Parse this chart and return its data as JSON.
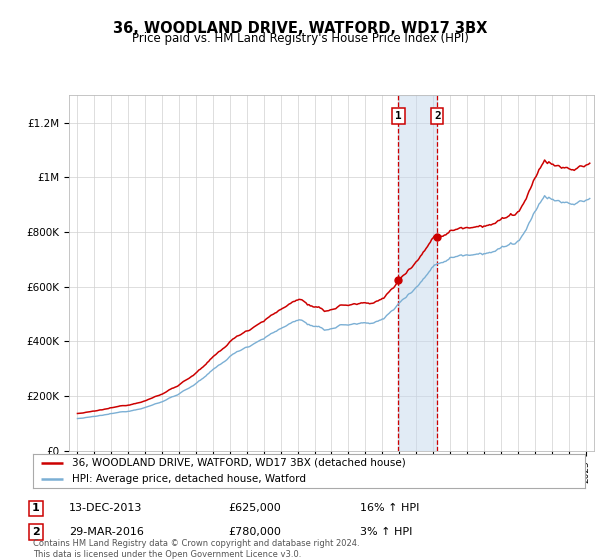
{
  "title": "36, WOODLAND DRIVE, WATFORD, WD17 3BX",
  "subtitle": "Price paid vs. HM Land Registry's House Price Index (HPI)",
  "legend_line1": "36, WOODLAND DRIVE, WATFORD, WD17 3BX (detached house)",
  "legend_line2": "HPI: Average price, detached house, Watford",
  "annotation1_label": "1",
  "annotation1_date": "13-DEC-2013",
  "annotation1_price": "£625,000",
  "annotation1_hpi": "16% ↑ HPI",
  "annotation2_label": "2",
  "annotation2_date": "29-MAR-2016",
  "annotation2_price": "£780,000",
  "annotation2_hpi": "3% ↑ HPI",
  "footnote": "Contains HM Land Registry data © Crown copyright and database right 2024.\nThis data is licensed under the Open Government Licence v3.0.",
  "red_color": "#cc0000",
  "blue_color": "#7bafd4",
  "background_color": "#ffffff",
  "ylim": [
    0,
    1300000
  ],
  "yticks": [
    0,
    200000,
    400000,
    600000,
    800000,
    1000000,
    1200000
  ],
  "ytick_labels": [
    "£0",
    "£200K",
    "£400K",
    "£600K",
    "£800K",
    "£1M",
    "£1.2M"
  ],
  "sale1_x": 2013.95,
  "sale1_y": 625000,
  "sale2_x": 2016.25,
  "sale2_y": 780000,
  "shade_x1": 2013.95,
  "shade_x2": 2016.25,
  "xmin": 1994.5,
  "xmax": 2025.5
}
